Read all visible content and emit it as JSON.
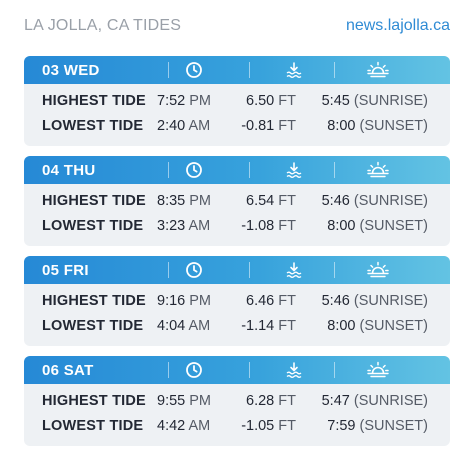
{
  "header": {
    "title": "LA JOLLA, CA TIDES",
    "site": "news.lajolla.ca"
  },
  "icons": {
    "time": "clock-icon",
    "height": "tide-level-icon",
    "sun": "sun-horizon-icon"
  },
  "colors": {
    "header_start": "#2689d6",
    "header_end": "#63c3e3",
    "row_bg": "#eef1f4",
    "link": "#2f8bd4"
  },
  "days": [
    {
      "label": "03 WED",
      "high": {
        "label": "HIGHEST TIDE",
        "time": "7:52",
        "ampm": "PM",
        "height": "6.50",
        "unit": "FT",
        "sun_time": "5:45",
        "sun_event": "(SUNRISE)"
      },
      "low": {
        "label": "LOWEST TIDE",
        "time": "2:40",
        "ampm": "AM",
        "height": "-0.81",
        "unit": "FT",
        "sun_time": "8:00",
        "sun_event": "(SUNSET)"
      }
    },
    {
      "label": "04 THU",
      "high": {
        "label": "HIGHEST TIDE",
        "time": "8:35",
        "ampm": "PM",
        "height": "6.54",
        "unit": "FT",
        "sun_time": "5:46",
        "sun_event": "(SUNRISE)"
      },
      "low": {
        "label": "LOWEST TIDE",
        "time": "3:23",
        "ampm": "AM",
        "height": "-1.08",
        "unit": "FT",
        "sun_time": "8:00",
        "sun_event": "(SUNSET)"
      }
    },
    {
      "label": "05 FRI",
      "high": {
        "label": "HIGHEST TIDE",
        "time": "9:16",
        "ampm": "PM",
        "height": "6.46",
        "unit": "FT",
        "sun_time": "5:46",
        "sun_event": "(SUNRISE)"
      },
      "low": {
        "label": "LOWEST TIDE",
        "time": "4:04",
        "ampm": "AM",
        "height": "-1.14",
        "unit": "FT",
        "sun_time": "8:00",
        "sun_event": "(SUNSET)"
      }
    },
    {
      "label": "06 SAT",
      "high": {
        "label": "HIGHEST TIDE",
        "time": "9:55",
        "ampm": "PM",
        "height": "6.28",
        "unit": "FT",
        "sun_time": "5:47",
        "sun_event": "(SUNRISE)"
      },
      "low": {
        "label": "LOWEST TIDE",
        "time": "4:42",
        "ampm": "AM",
        "height": "-1.05",
        "unit": "FT",
        "sun_time": "7:59",
        "sun_event": "(SUNSET)"
      }
    }
  ]
}
